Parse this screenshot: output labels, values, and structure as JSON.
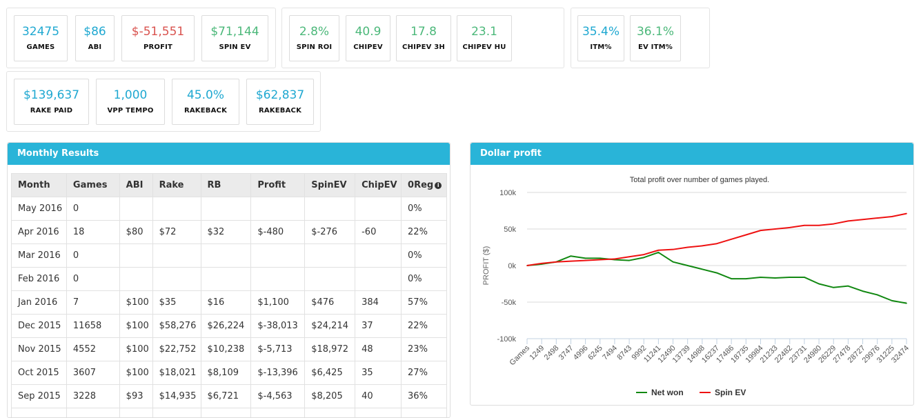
{
  "stats_row1_group1": [
    {
      "value": "32475",
      "label": "GAMES",
      "color": "#1fa8d1"
    },
    {
      "value": "$86",
      "label": "ABI",
      "color": "#1fa8d1"
    },
    {
      "value": "$-51,551",
      "label": "PROFIT",
      "color": "#d9534f"
    },
    {
      "value": "$71,144",
      "label": "SPIN EV",
      "color": "#4cb87a"
    }
  ],
  "stats_row1_group2": [
    {
      "value": "2.8%",
      "label": "SPIN ROI",
      "color": "#4cb87a"
    },
    {
      "value": "40.9",
      "label": "CHIPEV",
      "color": "#4cb87a"
    },
    {
      "value": "17.8",
      "label": "CHIPEV 3H",
      "color": "#4cb87a"
    },
    {
      "value": "23.1",
      "label": "CHIPEV HU",
      "color": "#4cb87a"
    }
  ],
  "stats_row1_group3": [
    {
      "value": "35.4%",
      "label": "ITM%",
      "color": "#1fa8d1"
    },
    {
      "value": "36.1%",
      "label": "EV ITM%",
      "color": "#4cb87a"
    }
  ],
  "stats_row2_group1": [
    {
      "value": "$139,637",
      "label": "RAKE PAID",
      "color": "#1fa8d1"
    },
    {
      "value": "1,000",
      "label": "VPP TEMPO",
      "color": "#1fa8d1"
    },
    {
      "value": "45.0%",
      "label": "RAKEBACK",
      "color": "#1fa8d1"
    },
    {
      "value": "$62,837",
      "label": "RAKEBACK",
      "color": "#1fa8d1"
    }
  ],
  "monthly": {
    "title": "Monthly Results",
    "columns": [
      "Month",
      "Games",
      "ABI",
      "Rake",
      "RB",
      "Profit",
      "SpinEV",
      "ChipEV",
      "0Reg"
    ],
    "rows": [
      [
        "May 2016",
        "0",
        "",
        "",
        "",
        "",
        "",
        "",
        "0%"
      ],
      [
        "Apr 2016",
        "18",
        "$80",
        "$72",
        "$32",
        "$-480",
        "$-276",
        "-60",
        "22%"
      ],
      [
        "Mar 2016",
        "0",
        "",
        "",
        "",
        "",
        "",
        "",
        "0%"
      ],
      [
        "Feb 2016",
        "0",
        "",
        "",
        "",
        "",
        "",
        "",
        "0%"
      ],
      [
        "Jan 2016",
        "7",
        "$100",
        "$35",
        "$16",
        "$1,100",
        "$476",
        "384",
        "57%"
      ],
      [
        "Dec 2015",
        "11658",
        "$100",
        "$58,276",
        "$26,224",
        "$-38,013",
        "$24,214",
        "37",
        "22%"
      ],
      [
        "Nov 2015",
        "4552",
        "$100",
        "$22,752",
        "$10,238",
        "$-5,713",
        "$18,972",
        "48",
        "23%"
      ],
      [
        "Oct 2015",
        "3607",
        "$100",
        "$18,021",
        "$8,109",
        "$-13,396",
        "$6,425",
        "35",
        "27%"
      ],
      [
        "Sep 2015",
        "3228",
        "$93",
        "$14,935",
        "$6,721",
        "$-4,563",
        "$8,205",
        "40",
        "36%"
      ],
      [
        "",
        "",
        "",
        "",
        "",
        "",
        "",
        "",
        ""
      ]
    ]
  },
  "profit_panel": {
    "title": "Dollar profit"
  },
  "chart_data": {
    "type": "line",
    "title": "Total profit over number of games played.",
    "xlabel": "",
    "ylabel": "PROFIT ($)",
    "ylim": [
      -100000,
      100000
    ],
    "yticks": [
      100000,
      50000,
      0,
      -50000,
      -100000
    ],
    "ytick_labels": [
      "100k",
      "50k",
      "0k",
      "-50k",
      "-100k"
    ],
    "x_tick_labels": [
      "Games",
      "1249",
      "2498",
      "3747",
      "4996",
      "6245",
      "7494",
      "8743",
      "9992",
      "11241",
      "12490",
      "13739",
      "14988",
      "16237",
      "17486",
      "18735",
      "19984",
      "21233",
      "22482",
      "23731",
      "24980",
      "26229",
      "27478",
      "28727",
      "29976",
      "31225",
      "32474"
    ],
    "x": [
      0,
      1249,
      2498,
      3747,
      4996,
      6245,
      7494,
      8743,
      9992,
      11241,
      12490,
      13739,
      14988,
      16237,
      17486,
      18735,
      19984,
      21233,
      22482,
      23731,
      24980,
      26229,
      27478,
      28727,
      29976,
      31225,
      32474
    ],
    "grid": true,
    "legend": "bottom-center",
    "series": [
      {
        "name": "Net won",
        "color": "#118811",
        "values": [
          0,
          2000,
          5000,
          13000,
          10000,
          10000,
          8000,
          7000,
          11000,
          18000,
          5000,
          0,
          -5000,
          -10000,
          -18000,
          -18000,
          -16000,
          -17000,
          -16000,
          -16000,
          -25000,
          -30000,
          -28000,
          -35000,
          -40000,
          -48000,
          -51551
        ]
      },
      {
        "name": "Spin EV",
        "color": "#ee1111",
        "values": [
          0,
          3000,
          5000,
          6000,
          7000,
          8000,
          9000,
          12000,
          15000,
          21000,
          22000,
          25000,
          27000,
          30000,
          36000,
          42000,
          48000,
          50000,
          52000,
          55000,
          55000,
          57000,
          61000,
          63000,
          65000,
          67000,
          71144
        ]
      }
    ]
  }
}
